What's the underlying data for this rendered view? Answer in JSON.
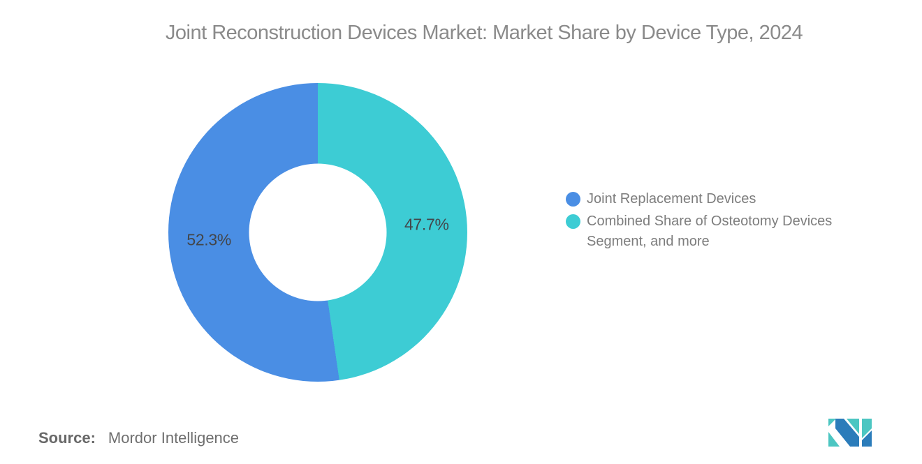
{
  "chart_data": {
    "type": "pie",
    "subtype": "donut",
    "title": "Joint Reconstruction Devices Market: Market Share by Device Type, 2024",
    "title_color": "#8a8a8a",
    "series": [
      {
        "name": "Joint Replacement Devices",
        "value": 52.3,
        "color": "#4a8ee4"
      },
      {
        "name": "Combined Share of Osteotomy Devices Segment, and more",
        "value": 47.7,
        "color": "#3dccd4"
      }
    ],
    "value_suffix": "%",
    "data_labels": [
      "52.3%",
      "47.7%"
    ],
    "draw_clockwise_from_top": [
      1,
      0
    ],
    "donut_hole_ratio": 0.46,
    "data_label_color": "#43464a",
    "legend_position": "right",
    "legend_text_color": "#7d7d7d",
    "grid": false
  },
  "source": {
    "label": "Source:",
    "value": "Mordor Intelligence"
  },
  "logo": {
    "name": "mordor-intelligence-logo",
    "colors": {
      "blue": "#2b7cba",
      "teal": "#4cc6c2"
    }
  }
}
